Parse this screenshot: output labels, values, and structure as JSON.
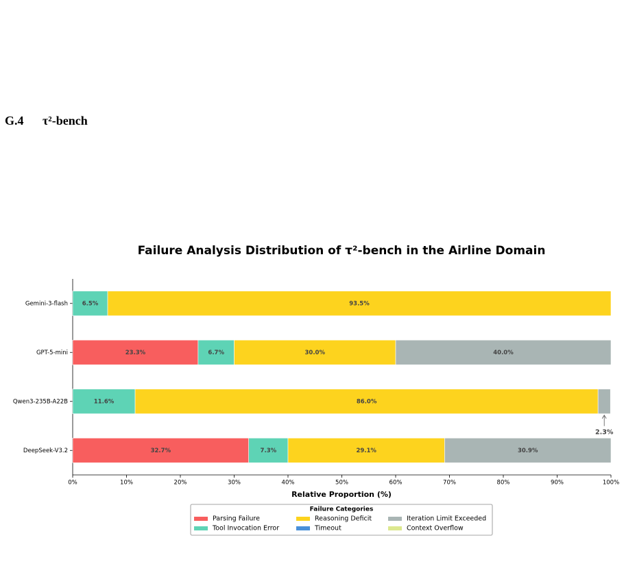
{
  "section": {
    "number": "G.4",
    "title": "τ²-bench"
  },
  "chart_data": {
    "type": "stacked-barh",
    "title": "Failure Analysis Distribution of τ²-bench in the Airline Domain",
    "x_label": "Relative Proportion (%)",
    "legend_title": "Failure Categories",
    "categories": [
      "Gemini-3-flash",
      "GPT-5-mini",
      "Qwen3-235B-A22B",
      "DeepSeek-V3.2"
    ],
    "series": [
      {
        "name": "Parsing Failure",
        "color": "#f85e5e",
        "values": [
          0,
          23.3,
          0,
          32.7
        ],
        "value_labels": [
          null,
          "23.3%",
          null,
          "32.7%"
        ]
      },
      {
        "name": "Tool Invocation Error",
        "color": "#5ed3b5",
        "values": [
          6.5,
          6.7,
          11.6,
          7.3
        ],
        "value_labels": [
          "6.5%",
          "6.7%",
          "11.6%",
          "7.3%"
        ]
      },
      {
        "name": "Reasoning Deficit",
        "color": "#fdd31e",
        "values": [
          93.5,
          30,
          86,
          29.1
        ],
        "value_labels": [
          "93.5%",
          "30.0%",
          "86.0%",
          "29.1%"
        ]
      },
      {
        "name": "Timeout",
        "color": "#4a90d9",
        "values": [
          0,
          0,
          0,
          0
        ],
        "value_labels": [
          null,
          null,
          null,
          null
        ]
      },
      {
        "name": "Iteration Limit Exceeded",
        "color": "#a9b5b4",
        "values": [
          0,
          40,
          2.3,
          30.9
        ],
        "value_labels": [
          null,
          "40.0%",
          "2.3%",
          "30.9%"
        ]
      },
      {
        "name": "Context Overflow",
        "color": "#dce88f",
        "values": [
          0,
          0,
          0,
          0
        ],
        "value_labels": [
          null,
          null,
          null,
          null
        ]
      }
    ],
    "xlim": [
      0,
      100
    ],
    "xticks": [
      {
        "value": 0,
        "label": "0%"
      },
      {
        "value": 10,
        "label": "10%"
      },
      {
        "value": 20,
        "label": "20%"
      },
      {
        "value": 30,
        "label": "30%"
      },
      {
        "value": 40,
        "label": "40%"
      },
      {
        "value": 50,
        "label": "50%"
      },
      {
        "value": 60,
        "label": "60%"
      },
      {
        "value": 70,
        "label": "70%"
      },
      {
        "value": 80,
        "label": "80%"
      },
      {
        "value": 90,
        "label": "90%"
      },
      {
        "value": 100,
        "label": "100%"
      }
    ],
    "legend": "lower center"
  }
}
